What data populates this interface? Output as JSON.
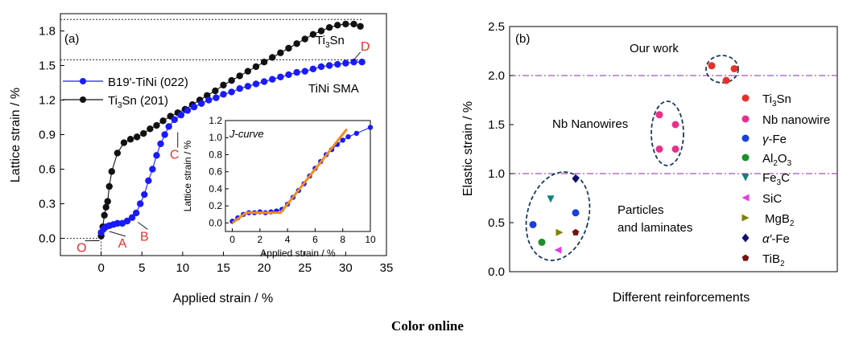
{
  "caption": "Color online",
  "chart_data": [
    {
      "panel_label": "(a)",
      "type": "scatter",
      "xlabel": "Applied strain / %",
      "ylabel": "Lattice strain / %",
      "xlim": [
        -5,
        35
      ],
      "ylim": [
        -0.15,
        1.95
      ],
      "xticks": [
        "0",
        "5",
        "10",
        "15",
        "20",
        "25",
        "30",
        "35"
      ],
      "yticks": [
        "0.0",
        "0.3",
        "0.6",
        "0.9",
        "1.2",
        "1.5",
        "1.8"
      ],
      "legend": {
        "position": "upper-left",
        "items": [
          "B19'-TiNi (022)",
          "Ti3Sn (201)"
        ]
      },
      "colors": {
        "tinisma": "#1a1aff",
        "ti3sn": "#111111"
      },
      "series": [
        {
          "name": "Ti3Sn (201)",
          "x": [
            0,
            0.2,
            0.4,
            0.6,
            0.8,
            1.0,
            1.3,
            2.0,
            2.8,
            3.6,
            4.4,
            5.2,
            6.0,
            6.8,
            7.6,
            8.5,
            9.4,
            10.3,
            11.2,
            12.1,
            13.0,
            14.0,
            15.0,
            16.0,
            17.0,
            18.0,
            19.0,
            20.0,
            21.0,
            22.0,
            23.0,
            24.0,
            25.0,
            26.0,
            27.0,
            28.0,
            29.0,
            30.0,
            31.0,
            31.8
          ],
          "y": [
            0.02,
            0.1,
            0.2,
            0.27,
            0.32,
            0.45,
            0.58,
            0.74,
            0.83,
            0.86,
            0.88,
            0.91,
            0.95,
            0.98,
            1.02,
            1.06,
            1.09,
            1.12,
            1.16,
            1.2,
            1.24,
            1.28,
            1.33,
            1.37,
            1.41,
            1.45,
            1.49,
            1.53,
            1.57,
            1.61,
            1.65,
            1.69,
            1.73,
            1.77,
            1.8,
            1.83,
            1.85,
            1.86,
            1.86,
            1.84
          ]
        },
        {
          "name": "B19'-TiNi (022)",
          "x": [
            0,
            0.3,
            0.6,
            1.0,
            1.5,
            2.0,
            2.6,
            3.2,
            3.8,
            4.3,
            4.8,
            5.3,
            5.8,
            6.3,
            6.8,
            7.3,
            7.8,
            8.3,
            9.0,
            9.8,
            10.6,
            11.4,
            12.3,
            13.2,
            14.1,
            15.0,
            16.0,
            17.0,
            18.0,
            19.0,
            20.0,
            21.0,
            22.0,
            23.0,
            24.0,
            25.0,
            26.0,
            27.0,
            28.0,
            29.0,
            30.0,
            31.0,
            32.0
          ],
          "y": [
            0.05,
            0.08,
            0.1,
            0.11,
            0.12,
            0.13,
            0.13,
            0.15,
            0.18,
            0.22,
            0.3,
            0.38,
            0.5,
            0.6,
            0.72,
            0.82,
            0.9,
            0.97,
            1.03,
            1.07,
            1.11,
            1.14,
            1.17,
            1.2,
            1.22,
            1.25,
            1.27,
            1.3,
            1.32,
            1.34,
            1.36,
            1.38,
            1.4,
            1.42,
            1.44,
            1.45,
            1.47,
            1.49,
            1.5,
            1.51,
            1.52,
            1.53,
            1.53
          ]
        }
      ],
      "reference_lines": [
        1.9,
        1.55
      ],
      "annotations": {
        "ti3sn_label": "Ti3Sn",
        "tinisma_label": "TiNi SMA",
        "points": [
          {
            "label": "O",
            "x": -1.5,
            "y": -0.04
          },
          {
            "label": "A",
            "x": 2.5,
            "y": 0.0
          },
          {
            "label": "B",
            "x": 5.5,
            "y": 0.03
          },
          {
            "label": "C",
            "x": 9.0,
            "y": 0.75
          },
          {
            "label": "D",
            "x": 32.5,
            "y": 1.62
          }
        ]
      },
      "inset": {
        "type": "line",
        "title": "J-curve",
        "xlabel": "Applied strain / %",
        "ylabel": "Lattice strain / %",
        "xlim": [
          -0.5,
          10
        ],
        "ylim": [
          -0.1,
          1.2
        ],
        "xticks": [
          "0",
          "2",
          "4",
          "6",
          "8",
          "10"
        ],
        "yticks": [
          "0.0",
          "0.2",
          "0.4",
          "0.6",
          "0.8",
          "1.0",
          "1.2"
        ],
        "points_x": [
          0,
          0.4,
          0.8,
          1.2,
          1.6,
          2.0,
          2.4,
          2.8,
          3.2,
          3.6,
          4.0,
          4.4,
          4.8,
          5.2,
          5.6,
          6.0,
          6.4,
          6.8,
          7.2,
          7.6,
          8.0,
          8.4,
          9.0,
          10.0
        ],
        "points_y": [
          0.02,
          0.06,
          0.1,
          0.12,
          0.12,
          0.13,
          0.12,
          0.13,
          0.14,
          0.16,
          0.22,
          0.3,
          0.38,
          0.46,
          0.55,
          0.64,
          0.72,
          0.8,
          0.86,
          0.92,
          0.97,
          1.01,
          1.05,
          1.12
        ],
        "fit_x": [
          0,
          1.0,
          3.5,
          8.3
        ],
        "fit_y": [
          0.0,
          0.12,
          0.12,
          1.1
        ],
        "fit_color": "#f08c1e"
      }
    },
    {
      "panel_label": "(b)",
      "type": "scatter",
      "xlabel": "Different reinforcements",
      "ylabel": "Elastic strain / %",
      "ylim": [
        0,
        2.5
      ],
      "yticks": [
        "0.0",
        "0.5",
        "1.0",
        "1.5",
        "2.0",
        "2.5"
      ],
      "reference_lines": [
        2.0,
        1.0
      ],
      "legend": {
        "position": "right",
        "items": [
          {
            "label": "Ti3Sn",
            "color": "#e8302a",
            "marker": "circle"
          },
          {
            "label": "Nb nanowire",
            "color": "#e8308a",
            "marker": "circle"
          },
          {
            "label": "γ-Fe",
            "color": "#1a3fe0",
            "marker": "circle"
          },
          {
            "label": "Al2O3",
            "color": "#1d8f2b",
            "marker": "circle"
          },
          {
            "label": "Fe3C",
            "color": "#108080",
            "marker": "triangle-down"
          },
          {
            "label": "SiC",
            "color": "#e040e0",
            "marker": "triangle-left"
          },
          {
            "label": "MgB2",
            "color": "#808000",
            "marker": "triangle-right"
          },
          {
            "label": "α′-Fe",
            "color": "#101070",
            "marker": "diamond"
          },
          {
            "label": "TiB2",
            "color": "#7a1010",
            "marker": "pentagon"
          }
        ]
      },
      "group_labels": [
        "Our work",
        "Nb Nanowires",
        "Particles",
        "and laminates"
      ],
      "points": [
        {
          "series": "Ti3Sn",
          "y": 2.1
        },
        {
          "series": "Ti3Sn",
          "y": 2.07
        },
        {
          "series": "Ti3Sn",
          "y": 1.95
        },
        {
          "series": "Nb nanowire",
          "y": 1.6
        },
        {
          "series": "Nb nanowire",
          "y": 1.5
        },
        {
          "series": "Nb nanowire",
          "y": 1.25
        },
        {
          "series": "Nb nanowire",
          "y": 1.25
        },
        {
          "series": "γ-Fe",
          "y": 0.48
        },
        {
          "series": "γ-Fe",
          "y": 0.6
        },
        {
          "series": "Al2O3",
          "y": 0.3
        },
        {
          "series": "Fe3C",
          "y": 0.74
        },
        {
          "series": "SiC",
          "y": 0.22
        },
        {
          "series": "MgB2",
          "y": 0.4
        },
        {
          "series": "α′-Fe",
          "y": 0.95
        },
        {
          "series": "TiB2",
          "y": 0.4
        }
      ]
    }
  ]
}
